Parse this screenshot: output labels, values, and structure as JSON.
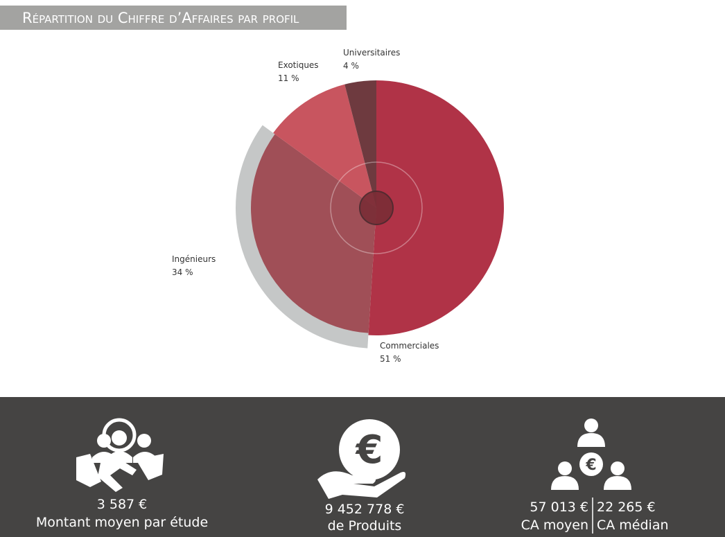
{
  "chart_data": {
    "type": "pie",
    "title": "Répartition du Chiffre d’Affaires par profil",
    "categories": [
      "Commerciales",
      "Ingénieurs",
      "Exotiques",
      "Universitaires"
    ],
    "values": [
      51,
      34,
      11,
      4
    ],
    "value_labels": [
      "51 %",
      "34 %",
      "11 %",
      "4 %"
    ],
    "colors": [
      "#b03347",
      "#a04f57",
      "#c8555f",
      "#6e3a3f"
    ]
  },
  "stats": [
    {
      "value": "3 587 €",
      "label": "Montant moyen par étude"
    },
    {
      "value": "9 452 778 €",
      "label": "de Produits"
    },
    {
      "value": "57 013 €",
      "label": "CA moyen"
    },
    {
      "value": "22 265 €",
      "label": "CA médian"
    }
  ]
}
